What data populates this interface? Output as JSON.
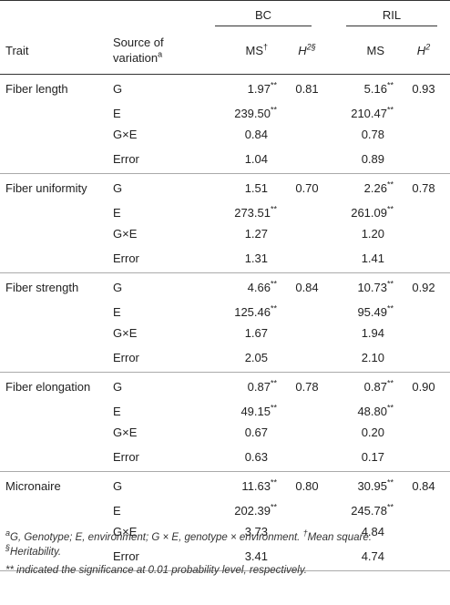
{
  "header": {
    "col_trait": "Trait",
    "col_source_line1": "Source of",
    "col_source_line2": "variation",
    "col_source_sup": "a",
    "group_bc": "BC",
    "group_ril": "RIL",
    "bc_ms": "MS",
    "bc_ms_sup": "†",
    "bc_h2": "H",
    "bc_h2_sup": "2§",
    "ril_ms": "MS",
    "ril_h2": "H",
    "ril_h2_sup": "2"
  },
  "rows": [
    {
      "trait": "Fiber length",
      "items": [
        {
          "src": "G",
          "bc_ms": "1.97",
          "bc_sig": "**",
          "bc_h2": "0.81",
          "ril_ms": "5.16",
          "ril_sig": "**",
          "ril_h2": "0.93"
        },
        {
          "src": "E",
          "bc_ms": "239.50",
          "bc_sig": "**",
          "bc_h2": "",
          "ril_ms": "210.47",
          "ril_sig": "**",
          "ril_h2": ""
        },
        {
          "src": "G×E",
          "bc_ms": "0.84",
          "bc_sig": "",
          "bc_h2": "",
          "ril_ms": "0.78",
          "ril_sig": "",
          "ril_h2": ""
        },
        {
          "src": "Error",
          "bc_ms": "1.04",
          "bc_sig": "",
          "bc_h2": "",
          "ril_ms": "0.89",
          "ril_sig": "",
          "ril_h2": ""
        }
      ]
    },
    {
      "trait": "Fiber uniformity",
      "items": [
        {
          "src": "G",
          "bc_ms": "1.51",
          "bc_sig": "",
          "bc_h2": "0.70",
          "ril_ms": "2.26",
          "ril_sig": "**",
          "ril_h2": "0.78"
        },
        {
          "src": "E",
          "bc_ms": "273.51",
          "bc_sig": "**",
          "bc_h2": "",
          "ril_ms": "261.09",
          "ril_sig": "**",
          "ril_h2": ""
        },
        {
          "src": "G×E",
          "bc_ms": "1.27",
          "bc_sig": "",
          "bc_h2": "",
          "ril_ms": "1.20",
          "ril_sig": "",
          "ril_h2": ""
        },
        {
          "src": "Error",
          "bc_ms": "1.31",
          "bc_sig": "",
          "bc_h2": "",
          "ril_ms": "1.41",
          "ril_sig": "",
          "ril_h2": ""
        }
      ]
    },
    {
      "trait": "Fiber strength",
      "items": [
        {
          "src": "G",
          "bc_ms": "4.66",
          "bc_sig": "**",
          "bc_h2": "0.84",
          "ril_ms": "10.73",
          "ril_sig": "**",
          "ril_h2": "0.92"
        },
        {
          "src": "E",
          "bc_ms": "125.46",
          "bc_sig": "**",
          "bc_h2": "",
          "ril_ms": "95.49",
          "ril_sig": "**",
          "ril_h2": ""
        },
        {
          "src": "G×E",
          "bc_ms": "1.67",
          "bc_sig": "",
          "bc_h2": "",
          "ril_ms": "1.94",
          "ril_sig": "",
          "ril_h2": ""
        },
        {
          "src": "Error",
          "bc_ms": "2.05",
          "bc_sig": "",
          "bc_h2": "",
          "ril_ms": "2.10",
          "ril_sig": "",
          "ril_h2": ""
        }
      ]
    },
    {
      "trait": "Fiber elongation",
      "items": [
        {
          "src": "G",
          "bc_ms": "0.87",
          "bc_sig": "**",
          "bc_h2": "0.78",
          "ril_ms": "0.87",
          "ril_sig": "**",
          "ril_h2": "0.90"
        },
        {
          "src": "E",
          "bc_ms": "49.15",
          "bc_sig": "**",
          "bc_h2": "",
          "ril_ms": "48.80",
          "ril_sig": "**",
          "ril_h2": ""
        },
        {
          "src": "G×E",
          "bc_ms": "0.67",
          "bc_sig": "",
          "bc_h2": "",
          "ril_ms": "0.20",
          "ril_sig": "",
          "ril_h2": ""
        },
        {
          "src": "Error",
          "bc_ms": "0.63",
          "bc_sig": "",
          "bc_h2": "",
          "ril_ms": "0.17",
          "ril_sig": "",
          "ril_h2": ""
        }
      ]
    },
    {
      "trait": "Micronaire",
      "items": [
        {
          "src": "G",
          "bc_ms": "11.63",
          "bc_sig": "**",
          "bc_h2": "0.80",
          "ril_ms": "30.95",
          "ril_sig": "**",
          "ril_h2": "0.84"
        },
        {
          "src": "E",
          "bc_ms": "202.39",
          "bc_sig": "**",
          "bc_h2": "",
          "ril_ms": "245.78",
          "ril_sig": "**",
          "ril_h2": ""
        },
        {
          "src": "G×E",
          "bc_ms": "3.73",
          "bc_sig": "",
          "bc_h2": "",
          "ril_ms": "4.84",
          "ril_sig": "",
          "ril_h2": ""
        },
        {
          "src": "Error",
          "bc_ms": "3.41",
          "bc_sig": "",
          "bc_h2": "",
          "ril_ms": "4.74",
          "ril_sig": "",
          "ril_h2": ""
        }
      ]
    }
  ],
  "footnotes": {
    "line1_sup": "a",
    "line1": "G, Genotype; E, environment; G × E, genotype × environment.",
    "line1_sup2": "†",
    "line1_tail": "Mean square.",
    "line2_sup": "§",
    "line2": "Heritability.",
    "line3": "** indicated the significance at 0.01 probability level, respectively."
  }
}
